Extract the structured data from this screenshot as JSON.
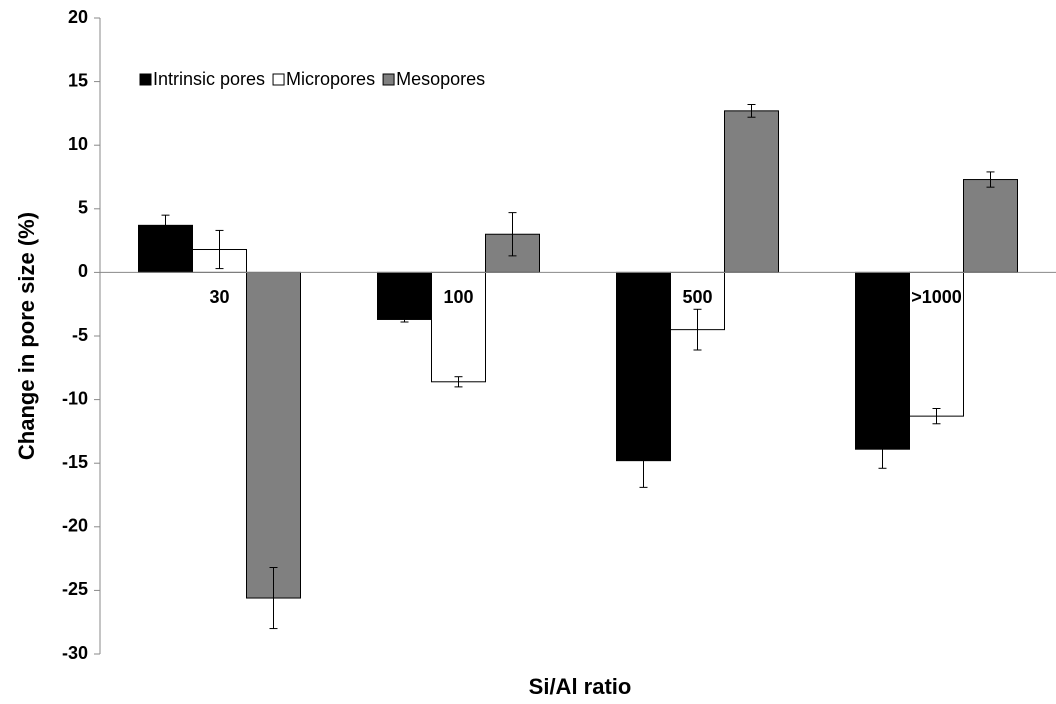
{
  "chart_data": {
    "type": "bar",
    "x_label": "Si/Al ratio",
    "y_label": "Change in pore size (%)",
    "categories": [
      "30",
      "100",
      "500",
      ">1000"
    ],
    "series": [
      {
        "name": "Intrinsic pores",
        "color": "#000000",
        "values": [
          3.7,
          -3.7,
          -14.8,
          -13.9
        ],
        "errors": [
          0.8,
          0.2,
          2.1,
          1.5
        ]
      },
      {
        "name": "Micropores",
        "color": "#ffffff",
        "values": [
          1.8,
          -8.6,
          -4.5,
          -11.3
        ],
        "errors": [
          1.5,
          0.4,
          1.6,
          0.6
        ]
      },
      {
        "name": "Mesopores",
        "color": "#808080",
        "values": [
          -25.6,
          3.0,
          12.7,
          7.3
        ],
        "errors": [
          2.4,
          1.7,
          0.5,
          0.6
        ]
      }
    ],
    "ylim": [
      -30,
      20
    ],
    "yticks": [
      -30,
      -25,
      -20,
      -15,
      -10,
      -5,
      0,
      5,
      10,
      15,
      20
    ],
    "legend": "top-left"
  }
}
